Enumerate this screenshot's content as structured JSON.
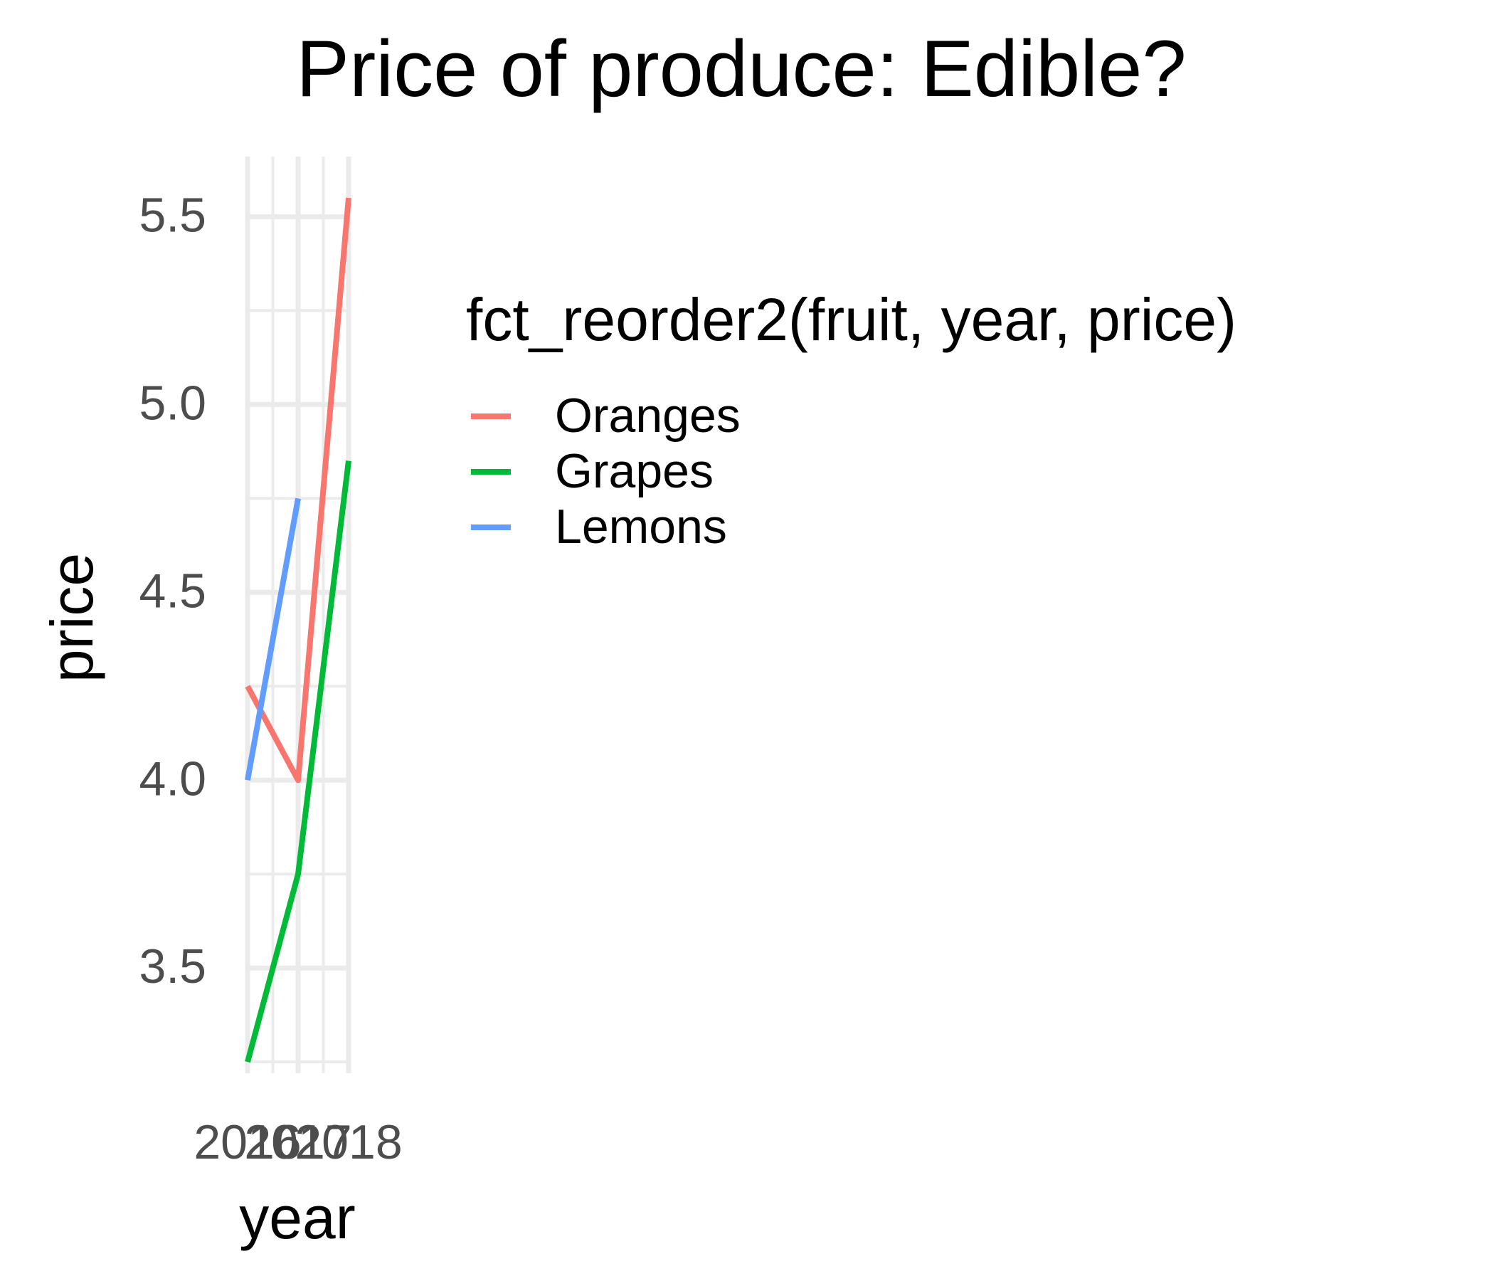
{
  "chart_data": {
    "type": "line",
    "title": "Price of produce: Edible?",
    "xlabel": "year",
    "ylabel": "price",
    "x_ticks": [
      2016,
      2017,
      2018
    ],
    "x_tick_labels": [
      "2016",
      "2017",
      "2018"
    ],
    "y_ticks": [
      3.5,
      4.0,
      4.5,
      5.0,
      5.5
    ],
    "y_tick_labels": [
      "3.5",
      "4.0",
      "4.5",
      "5.0",
      "5.5"
    ],
    "xlim": [
      2016,
      2018
    ],
    "ylim": [
      3.22,
      5.66
    ],
    "grid": true,
    "legend": {
      "title": "fct_reorder2(fruit, year, price)",
      "position": "right"
    },
    "series": [
      {
        "name": "Oranges",
        "color": "#F8766D",
        "x": [
          2016,
          2017,
          2018
        ],
        "y": [
          4.25,
          4.0,
          5.55
        ]
      },
      {
        "name": "Grapes",
        "color": "#00BA38",
        "x": [
          2016,
          2017,
          2018
        ],
        "y": [
          3.25,
          3.75,
          4.85
        ]
      },
      {
        "name": "Lemons",
        "color": "#619CFF",
        "x": [
          2016,
          2017
        ],
        "y": [
          4.0,
          4.75
        ]
      }
    ]
  }
}
